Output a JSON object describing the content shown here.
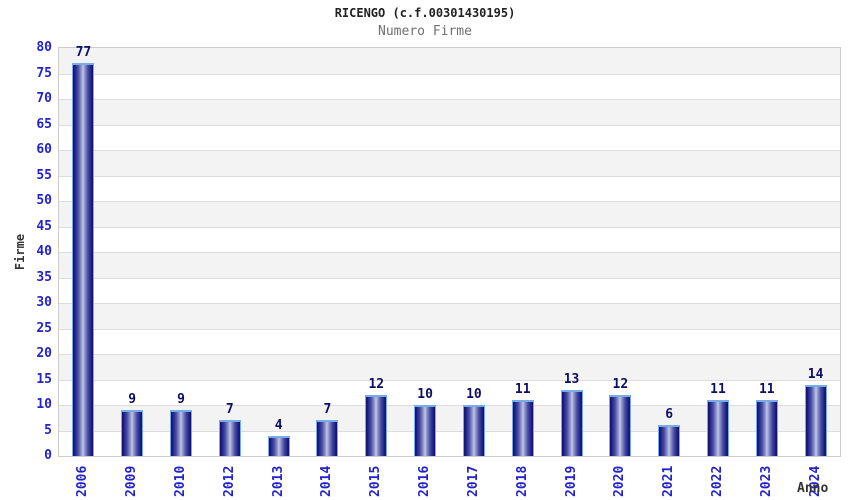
{
  "chart_data": {
    "type": "bar",
    "title": "RICENGO (c.f.00301430195)",
    "subtitle": "Numero Firme",
    "xlabel": "Anno",
    "ylabel": "Firme",
    "categories": [
      "2006",
      "2009",
      "2010",
      "2012",
      "2013",
      "2014",
      "2015",
      "2016",
      "2017",
      "2018",
      "2019",
      "2020",
      "2021",
      "2022",
      "2023",
      "2024"
    ],
    "values": [
      77,
      9,
      9,
      7,
      4,
      7,
      12,
      10,
      10,
      11,
      13,
      12,
      6,
      11,
      11,
      14
    ],
    "ylim": [
      0,
      80
    ],
    "ytick_step": 5,
    "grid": "horizontal-alternating-bands",
    "legend": "none",
    "colors": {
      "background": "#ffffff",
      "title": "#222222",
      "subtitle": "#707070",
      "axis_title": "#333333",
      "axis_tick_label": "#2323cc",
      "value_label": "#0d0d66",
      "bar_dark": "#10106e",
      "bar_mid": "#4a4fa5",
      "bar_light": "#c2c6e6",
      "bar_border": "#74ade8",
      "band_alt": "#f3f3f3",
      "gridline": "#dddddd",
      "plot_border": "#cccccc"
    }
  }
}
